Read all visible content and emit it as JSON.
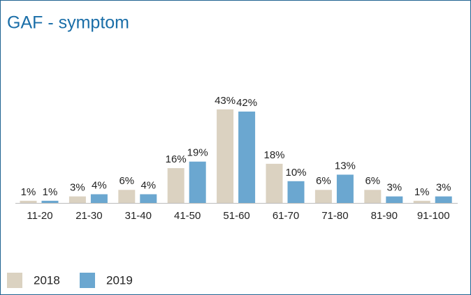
{
  "chart_data": {
    "type": "bar",
    "title": "GAF - symptom",
    "categories": [
      "11-20",
      "21-30",
      "31-40",
      "41-50",
      "51-60",
      "61-70",
      "71-80",
      "81-90",
      "91-100"
    ],
    "series": [
      {
        "name": "2018",
        "color": "#dbd2c1",
        "values": [
          1,
          3,
          6,
          16,
          43,
          18,
          6,
          6,
          1
        ],
        "value_labels": [
          "1%",
          "3%",
          "6%",
          "16%",
          "43%",
          "18%",
          "6%",
          "6%",
          "1%"
        ]
      },
      {
        "name": "2019",
        "color": "#6ba7d0",
        "values": [
          1,
          4,
          4,
          19,
          42,
          10,
          13,
          3,
          3
        ],
        "value_labels": [
          "1%",
          "4%",
          "4%",
          "19%",
          "42%",
          "10%",
          "13%",
          "3%",
          "3%"
        ]
      }
    ]
  }
}
